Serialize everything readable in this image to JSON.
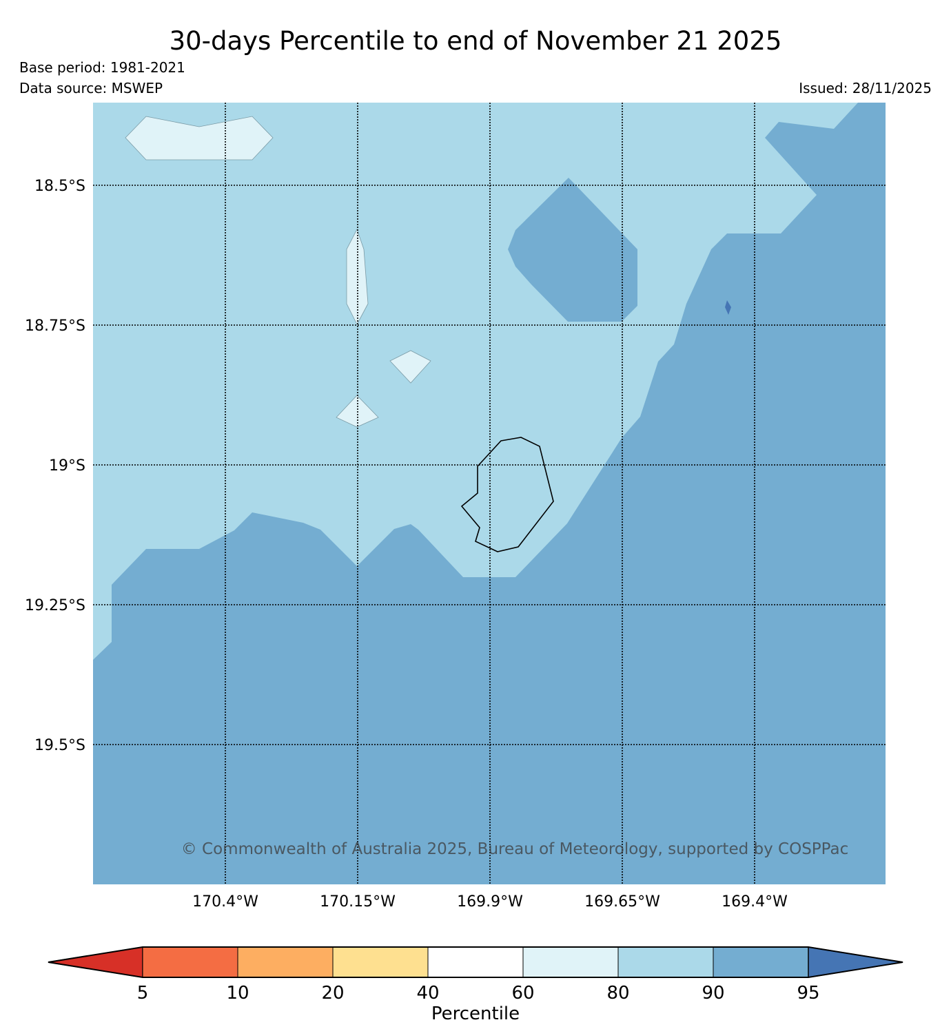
{
  "header": {
    "title": "30-days Percentile to end of November 21 2025",
    "base_period": "Base period: 1981-2021",
    "data_source": "Data source: MSWEP",
    "issued": "Issued: 28/11/2025"
  },
  "map": {
    "copyright": "© Commonwealth of Australia 2025, Bureau of Meteorology, supported by COSPPac",
    "lat_labels": [
      "18.5°S",
      "18.75°S",
      "19°S",
      "19.25°S",
      "19.5°S"
    ],
    "lon_labels": [
      "170.4°W",
      "170.15°W",
      "169.9°W",
      "169.65°W",
      "169.4°W"
    ],
    "colors": {
      "band_60_80": "#e0f3f8",
      "band_80_90": "#abd9e9",
      "band_90_95": "#74add1",
      "band_95_plus": "#4575b4",
      "coastline": "#000000"
    }
  },
  "colorbar": {
    "label": "Percentile",
    "ticks": [
      "5",
      "10",
      "20",
      "40",
      "60",
      "80",
      "90",
      "95"
    ],
    "colors": [
      "#d73027",
      "#f46d43",
      "#fdae61",
      "#fee090",
      "#ffffff",
      "#e0f3f8",
      "#abd9e9",
      "#74add1",
      "#4575b4"
    ]
  }
}
